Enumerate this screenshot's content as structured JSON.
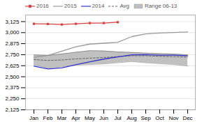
{
  "chart_data": {
    "type": "line",
    "categories": [
      "Jan",
      "Feb",
      "Mar",
      "Apr",
      "May",
      "Jun",
      "Jul",
      "Aug",
      "Sep",
      "Oct",
      "Nov",
      "Dec"
    ],
    "series": [
      {
        "name": "2016",
        "type": "line",
        "color": "#d94040",
        "marker": "square",
        "line_style": "solid",
        "values": [
          3100,
          3098,
          3092,
          3100,
          3108,
          3108,
          3118,
          null,
          null,
          null,
          null,
          null
        ]
      },
      {
        "name": "2015",
        "type": "line",
        "color": "#999999",
        "line_style": "solid",
        "values": [
          2720,
          2740,
          2790,
          2840,
          2870,
          2880,
          2890,
          2955,
          2985,
          2995,
          3002,
          3008
        ]
      },
      {
        "name": "2014",
        "type": "line",
        "color": "#3333cc",
        "line_style": "solid",
        "values": [
          2620,
          2588,
          2600,
          2635,
          2670,
          2700,
          2725,
          2748,
          2750,
          2745,
          2745,
          2738
        ]
      },
      {
        "name": "Avg",
        "type": "line",
        "color": "#666666",
        "line_style": "dashed",
        "values": [
          2695,
          2685,
          2690,
          2702,
          2710,
          2718,
          2728,
          2738,
          2738,
          2732,
          2728,
          2722
        ]
      },
      {
        "name": "Range 06-13",
        "type": "area",
        "color": "#c0c0c0",
        "lower": [
          2635,
          2598,
          2612,
          2632,
          2638,
          2645,
          2658,
          2672,
          2658,
          2648,
          2638,
          2622
        ],
        "upper": [
          2748,
          2742,
          2758,
          2778,
          2795,
          2792,
          2782,
          2775,
          2768,
          2762,
          2758,
          2748
        ]
      }
    ],
    "ylim": [
      2125,
      3200
    ],
    "yticks": [
      {
        "value": 2125,
        "label": "2,125"
      },
      {
        "value": 2250,
        "label": "2,250"
      },
      {
        "value": 2375,
        "label": "2,375"
      },
      {
        "value": 2500,
        "label": "2,500"
      },
      {
        "value": 2625,
        "label": "2,625"
      },
      {
        "value": 2750,
        "label": "2,750"
      },
      {
        "value": 2875,
        "label": "2,875"
      },
      {
        "value": 3000,
        "label": "3,000"
      },
      {
        "value": 3125,
        "label": "3,125"
      }
    ],
    "grid": true,
    "legend": "upper left"
  }
}
